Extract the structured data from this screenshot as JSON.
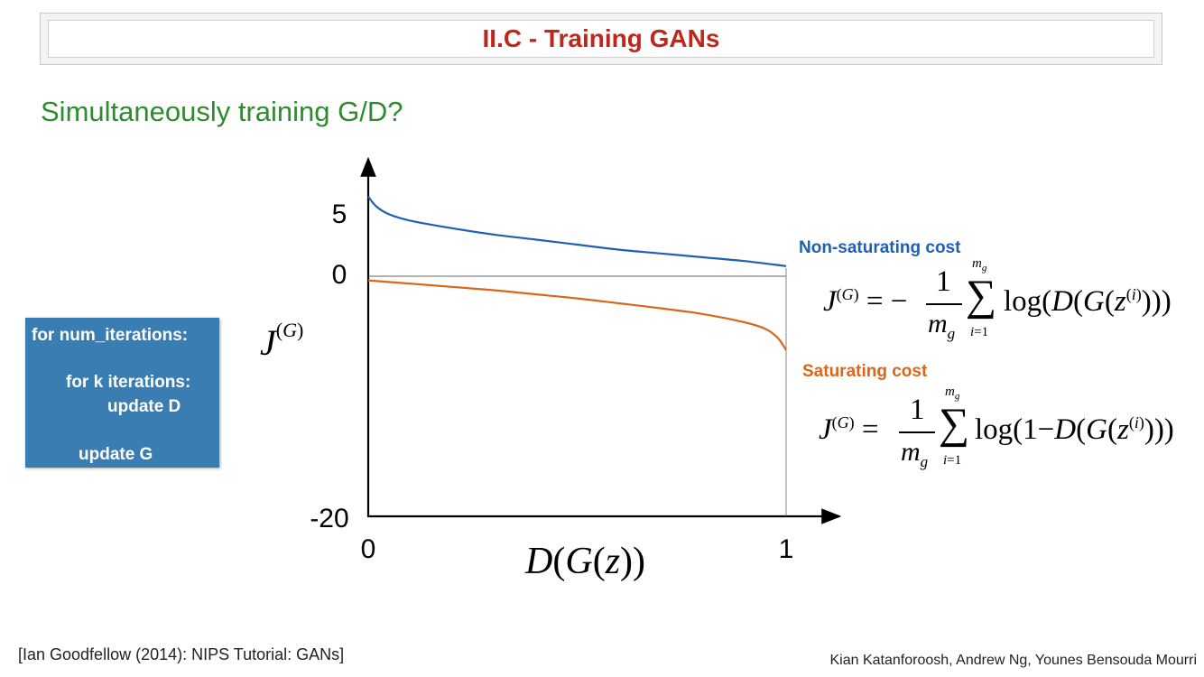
{
  "slide": {
    "title": "II.C - Training GANs",
    "subtitle": "Simultaneously training G/D?",
    "algorithm": {
      "line1": "for num_iterations:",
      "line2": "for k iterations:",
      "line3": "update D",
      "line4": "update G"
    },
    "labels": {
      "non_saturating": "Non-saturating cost",
      "saturating": "Saturating cost"
    },
    "footer_left": "[Ian Goodfellow (2014): NIPS Tutorial: GANs]",
    "footer_right": "Kian Katanforoosh, Andrew Ng, Younes Bensouda Mourri"
  },
  "colors": {
    "title": "#c0271c",
    "subtitle": "#2e8b2e",
    "box": "#3a7db2",
    "non_saturating": "#1f5fb4",
    "saturating": "#d9661a"
  },
  "chart_data": {
    "type": "line",
    "xlabel": "D(G(z))",
    "ylabel": "J(G)",
    "x_ticks": [
      "0",
      "1"
    ],
    "y_ticks": [
      "5",
      "0",
      "-20"
    ],
    "xlim": [
      0,
      1
    ],
    "ylim": [
      -20,
      5
    ],
    "series": [
      {
        "name": "Non-saturating cost",
        "color": "#1f5fb4",
        "x": [
          0.0,
          0.02,
          0.05,
          0.1,
          0.2,
          0.3,
          0.4,
          0.5,
          0.6,
          0.7,
          0.8,
          0.9,
          1.0
        ],
        "y": [
          6.3,
          5.5,
          4.9,
          4.4,
          3.8,
          3.3,
          2.9,
          2.5,
          2.1,
          1.8,
          1.5,
          1.2,
          0.8
        ]
      },
      {
        "name": "Saturating cost",
        "color": "#d9661a",
        "x": [
          0.0,
          0.1,
          0.2,
          0.3,
          0.4,
          0.5,
          0.6,
          0.7,
          0.8,
          0.9,
          0.95,
          0.98,
          1.0
        ],
        "y": [
          -0.5,
          -0.9,
          -1.3,
          -1.7,
          -2.2,
          -2.7,
          -3.3,
          -3.9,
          -4.6,
          -5.6,
          -6.4,
          -7.5,
          -9.0
        ]
      }
    ]
  }
}
